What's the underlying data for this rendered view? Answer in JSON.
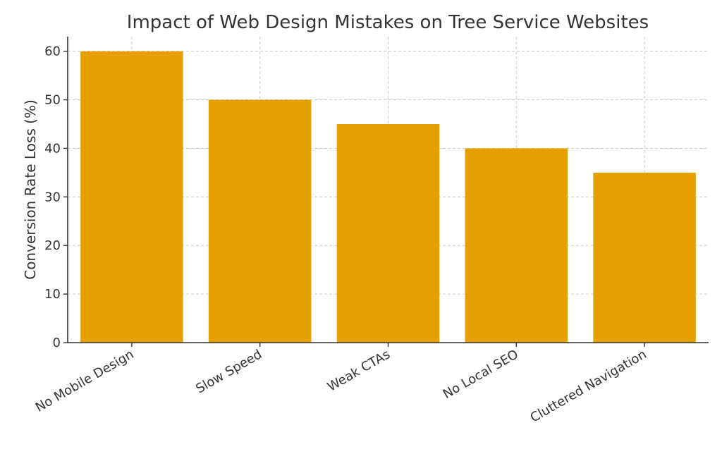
{
  "chart_data": {
    "type": "bar",
    "title": "Impact of Web Design Mistakes on Tree Service Websites",
    "xlabel": "",
    "ylabel": "Conversion Rate Loss (%)",
    "categories": [
      "No Mobile Design",
      "Slow Speed",
      "Weak CTAs",
      "No Local SEO",
      "Cluttered Navigation"
    ],
    "values": [
      60,
      50,
      45,
      40,
      35
    ],
    "ylim": [
      0,
      63
    ],
    "yticks": [
      0,
      10,
      20,
      30,
      40,
      50,
      60
    ],
    "grid": true,
    "bar_color": "#E5A000"
  }
}
